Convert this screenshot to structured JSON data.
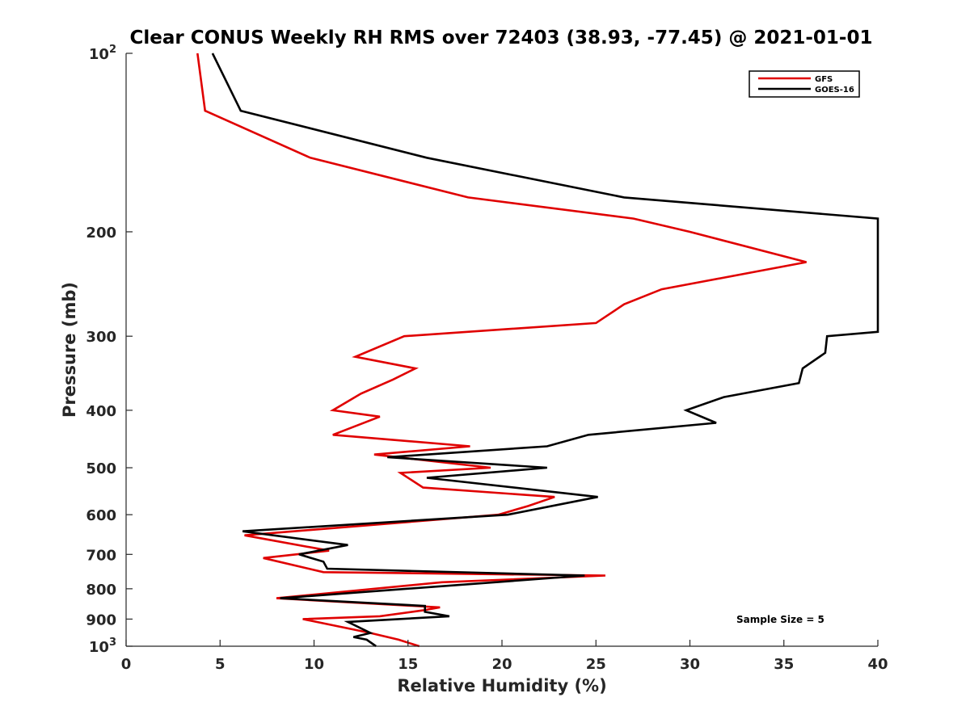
{
  "chart_data": {
    "type": "line",
    "title": "Clear CONUS Weekly RH RMS over 72403 (38.93, -77.45) @ 2021-01-01",
    "xlabel": "Relative Humidity (%)",
    "ylabel": "Pressure (mb)",
    "xlim": [
      0,
      40
    ],
    "ylim": [
      100,
      1000
    ],
    "yscale": "log",
    "y_reversed": true,
    "grid": false,
    "legend_position": "top-right",
    "x_ticks": [
      {
        "value": 0,
        "label": "0"
      },
      {
        "value": 5,
        "label": "5"
      },
      {
        "value": 10,
        "label": "10"
      },
      {
        "value": 15,
        "label": "15"
      },
      {
        "value": 20,
        "label": "20"
      },
      {
        "value": 25,
        "label": "25"
      },
      {
        "value": 30,
        "label": "30"
      },
      {
        "value": 35,
        "label": "35"
      },
      {
        "value": 40,
        "label": "40"
      }
    ],
    "y_ticks": [
      {
        "value": 100,
        "label": "10",
        "exp": "2"
      },
      {
        "value": 200,
        "label": "200",
        "exp": ""
      },
      {
        "value": 300,
        "label": "300",
        "exp": ""
      },
      {
        "value": 400,
        "label": "400",
        "exp": ""
      },
      {
        "value": 500,
        "label": "500",
        "exp": ""
      },
      {
        "value": 600,
        "label": "600",
        "exp": ""
      },
      {
        "value": 700,
        "label": "700",
        "exp": ""
      },
      {
        "value": 800,
        "label": "800",
        "exp": ""
      },
      {
        "value": 900,
        "label": "900",
        "exp": ""
      },
      {
        "value": 1000,
        "label": "10",
        "exp": "3"
      }
    ],
    "series": [
      {
        "name": "GFS",
        "color": "#e00000",
        "points": [
          {
            "x": 3.8,
            "p": 100
          },
          {
            "x": 4.2,
            "p": 125
          },
          {
            "x": 9.8,
            "p": 150
          },
          {
            "x": 18.2,
            "p": 175
          },
          {
            "x": 27.0,
            "p": 190
          },
          {
            "x": 30.0,
            "p": 200
          },
          {
            "x": 36.2,
            "p": 225
          },
          {
            "x": 28.5,
            "p": 250
          },
          {
            "x": 26.5,
            "p": 265
          },
          {
            "x": 25.0,
            "p": 285
          },
          {
            "x": 14.8,
            "p": 300
          },
          {
            "x": 12.2,
            "p": 325
          },
          {
            "x": 15.4,
            "p": 340
          },
          {
            "x": 14.2,
            "p": 355
          },
          {
            "x": 12.5,
            "p": 375
          },
          {
            "x": 11.0,
            "p": 400
          },
          {
            "x": 13.5,
            "p": 410
          },
          {
            "x": 11.0,
            "p": 440
          },
          {
            "x": 18.3,
            "p": 460
          },
          {
            "x": 13.2,
            "p": 475
          },
          {
            "x": 19.4,
            "p": 500
          },
          {
            "x": 14.6,
            "p": 510
          },
          {
            "x": 15.8,
            "p": 540
          },
          {
            "x": 22.8,
            "p": 560
          },
          {
            "x": 21.4,
            "p": 580
          },
          {
            "x": 19.8,
            "p": 600
          },
          {
            "x": 6.3,
            "p": 650
          },
          {
            "x": 10.8,
            "p": 690
          },
          {
            "x": 7.3,
            "p": 710
          },
          {
            "x": 10.5,
            "p": 750
          },
          {
            "x": 25.5,
            "p": 760
          },
          {
            "x": 16.8,
            "p": 780
          },
          {
            "x": 8.0,
            "p": 830
          },
          {
            "x": 16.7,
            "p": 860
          },
          {
            "x": 15.8,
            "p": 870
          },
          {
            "x": 13.5,
            "p": 890
          },
          {
            "x": 9.4,
            "p": 900
          },
          {
            "x": 13.0,
            "p": 950
          },
          {
            "x": 14.5,
            "p": 975
          },
          {
            "x": 15.6,
            "p": 1000
          }
        ]
      },
      {
        "name": "GOES-16",
        "color": "#000000",
        "points": [
          {
            "x": 4.6,
            "p": 100
          },
          {
            "x": 6.1,
            "p": 125
          },
          {
            "x": 16.0,
            "p": 150
          },
          {
            "x": 26.5,
            "p": 175
          },
          {
            "x": 40.0,
            "p": 190
          },
          {
            "x": 40.0,
            "p": 295
          },
          {
            "x": 37.3,
            "p": 300
          },
          {
            "x": 37.2,
            "p": 320
          },
          {
            "x": 36.0,
            "p": 340
          },
          {
            "x": 35.8,
            "p": 360
          },
          {
            "x": 31.8,
            "p": 380
          },
          {
            "x": 29.8,
            "p": 400
          },
          {
            "x": 31.4,
            "p": 420
          },
          {
            "x": 24.6,
            "p": 440
          },
          {
            "x": 22.4,
            "p": 460
          },
          {
            "x": 13.9,
            "p": 480
          },
          {
            "x": 22.4,
            "p": 500
          },
          {
            "x": 16.0,
            "p": 520
          },
          {
            "x": 25.1,
            "p": 560
          },
          {
            "x": 20.3,
            "p": 600
          },
          {
            "x": 6.2,
            "p": 640
          },
          {
            "x": 11.8,
            "p": 675
          },
          {
            "x": 9.2,
            "p": 700
          },
          {
            "x": 10.5,
            "p": 720
          },
          {
            "x": 10.7,
            "p": 740
          },
          {
            "x": 24.4,
            "p": 760
          },
          {
            "x": 8.2,
            "p": 830
          },
          {
            "x": 15.9,
            "p": 855
          },
          {
            "x": 15.9,
            "p": 875
          },
          {
            "x": 17.2,
            "p": 890
          },
          {
            "x": 11.8,
            "p": 910
          },
          {
            "x": 13.0,
            "p": 950
          },
          {
            "x": 12.1,
            "p": 965
          },
          {
            "x": 12.8,
            "p": 975
          },
          {
            "x": 13.3,
            "p": 1000
          }
        ]
      }
    ],
    "annotations": [
      "Sample Size = 5"
    ]
  }
}
